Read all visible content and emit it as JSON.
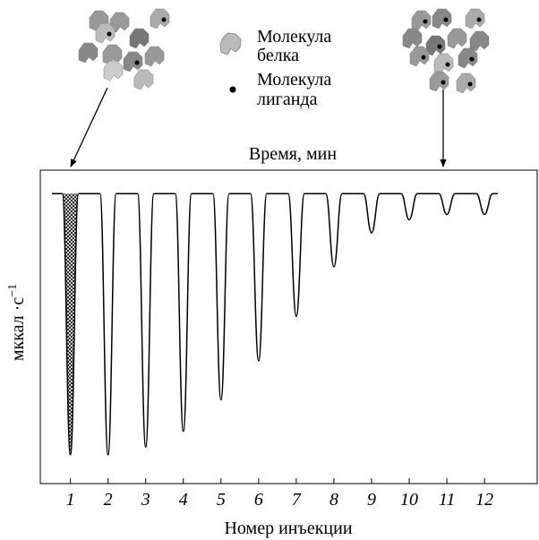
{
  "chart_data": {
    "type": "line",
    "top_label": "Время, мин",
    "x_label": "Номер инъекции",
    "y_label": "мккал ·с",
    "y_label_exp": "−1",
    "legend": [
      [
        "Молекула",
        "белка"
      ],
      [
        "Молекула",
        "лиганда"
      ]
    ],
    "x": [
      1,
      2,
      3,
      4,
      5,
      6,
      7,
      8,
      9,
      10,
      11,
      12
    ],
    "values": [
      -100,
      -100,
      -97,
      -91,
      -79,
      -64,
      -47,
      -28,
      -15,
      -10,
      -8,
      -8
    ],
    "color": "#000000",
    "xlim": [
      0.2,
      13.4
    ],
    "xticks": [
      1,
      2,
      3,
      4,
      5,
      6,
      7,
      8,
      9,
      10,
      11,
      12
    ],
    "ylim": [
      -111,
      9
    ]
  }
}
